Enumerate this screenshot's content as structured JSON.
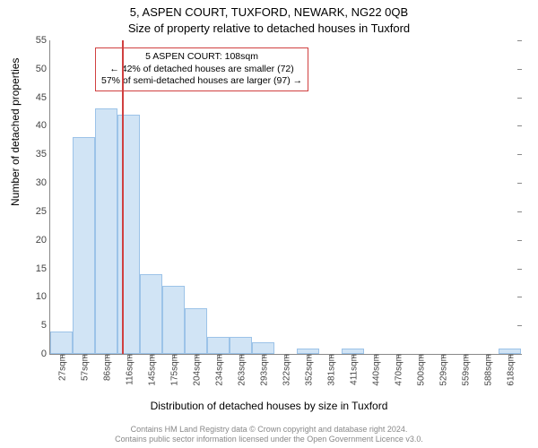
{
  "title_line1": "5, ASPEN COURT, TUXFORD, NEWARK, NG22 0QB",
  "title_line2": "Size of property relative to detached houses in Tuxford",
  "ylabel": "Number of detached properties",
  "xlabel": "Distribution of detached houses by size in Tuxford",
  "chart": {
    "type": "histogram",
    "ylim": [
      0,
      55
    ],
    "ytick_step": 5,
    "bar_fill": "#d1e4f5",
    "bar_stroke": "#9cc3e8",
    "marker_color": "#d04040",
    "background_color": "#ffffff",
    "axis_color": "#888888",
    "tick_font_size": 11,
    "categories": [
      "27sqm",
      "57sqm",
      "86sqm",
      "116sqm",
      "145sqm",
      "175sqm",
      "204sqm",
      "234sqm",
      "263sqm",
      "293sqm",
      "322sqm",
      "352sqm",
      "381sqm",
      "411sqm",
      "440sqm",
      "470sqm",
      "500sqm",
      "529sqm",
      "559sqm",
      "588sqm",
      "618sqm"
    ],
    "values": [
      4,
      38,
      43,
      42,
      14,
      12,
      8,
      3,
      3,
      2,
      0,
      1,
      0,
      1,
      0,
      0,
      0,
      0,
      0,
      0,
      1
    ],
    "marker_position_sqm": 108,
    "bar_width_ratio": 1.0
  },
  "annotation": {
    "line1": "5 ASPEN COURT: 108sqm",
    "line2": "← 42% of detached houses are smaller (72)",
    "line3": "57% of semi-detached houses are larger (97) →",
    "border_color": "#d04040"
  },
  "footer": {
    "line1": "Contains HM Land Registry data © Crown copyright and database right 2024.",
    "line2": "Contains public sector information licensed under the Open Government Licence v3.0."
  }
}
